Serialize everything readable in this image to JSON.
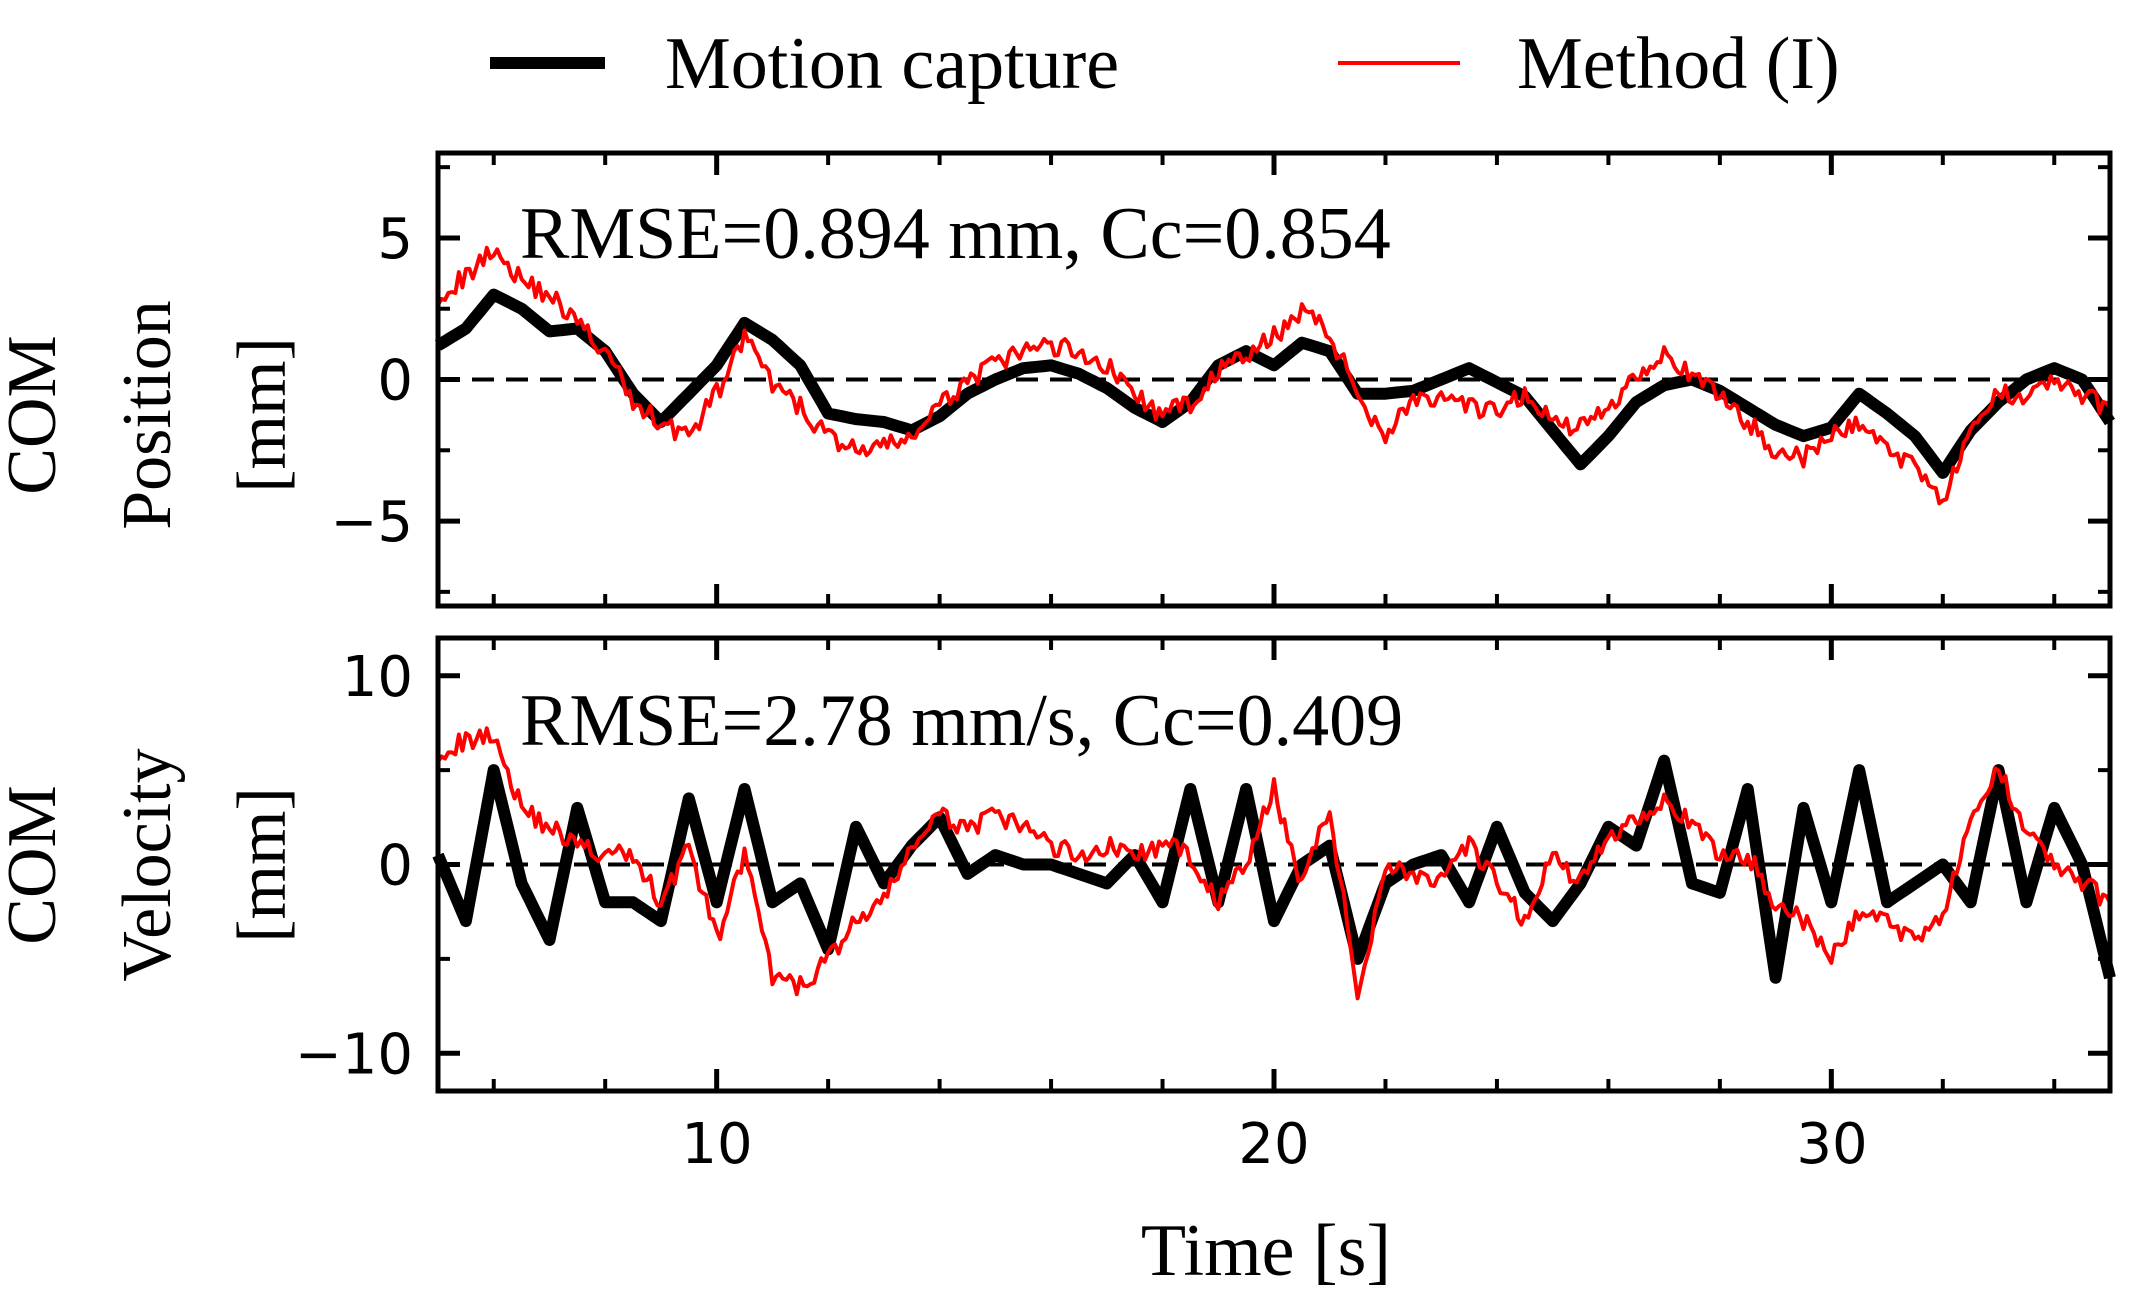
{
  "legend": {
    "placement": "top-center",
    "entries": [
      {
        "label": "Motion capture",
        "color": "#000000"
      },
      {
        "label": "Method (I)",
        "color": "#ff0000"
      }
    ]
  },
  "xaxis": {
    "label": "Time [s]",
    "ticks": [
      "10",
      "20",
      "30"
    ]
  },
  "chart_data": [
    {
      "type": "line",
      "title": "",
      "ylabel_lines": [
        "COM",
        "Position",
        "[mm]"
      ],
      "annotation": "RMSE=0.894 mm, Cc=0.854",
      "xlim": [
        5,
        35
      ],
      "ylim": [
        -8,
        8
      ],
      "yticks": [
        {
          "value": 5,
          "label": "5"
        },
        {
          "value": 0,
          "label": "0"
        },
        {
          "value": -5,
          "label": "−5"
        }
      ],
      "reference_line": 0,
      "grid": false,
      "series": [
        {
          "name": "Motion capture",
          "color": "#000000",
          "x": [
            5,
            5.5,
            6,
            6.5,
            7,
            7.5,
            8,
            8.5,
            9,
            9.5,
            10,
            10.5,
            11,
            11.5,
            12,
            12.5,
            13,
            13.5,
            14,
            14.5,
            15,
            15.5,
            16,
            16.5,
            17,
            17.5,
            18,
            18.5,
            19,
            19.5,
            20,
            20.5,
            21,
            21.5,
            22,
            22.5,
            23,
            23.5,
            24,
            24.5,
            25,
            25.5,
            26,
            26.5,
            27,
            27.5,
            28,
            28.5,
            29,
            29.5,
            30,
            30.5,
            31,
            31.5,
            32,
            32.5,
            33,
            33.5,
            34,
            34.5,
            35
          ],
          "y": [
            1.2,
            1.8,
            3.0,
            2.5,
            1.7,
            1.8,
            1.0,
            -0.5,
            -1.5,
            -0.5,
            0.5,
            2.0,
            1.4,
            0.5,
            -1.2,
            -1.4,
            -1.5,
            -1.8,
            -1.3,
            -0.5,
            0.0,
            0.4,
            0.5,
            0.2,
            -0.3,
            -1.0,
            -1.5,
            -0.8,
            0.5,
            1.0,
            0.5,
            1.3,
            1.0,
            -0.5,
            -0.5,
            -0.4,
            0.0,
            0.4,
            -0.1,
            -0.6,
            -1.8,
            -3.0,
            -2.0,
            -0.8,
            -0.2,
            0.0,
            -0.4,
            -1.0,
            -1.6,
            -2.0,
            -1.7,
            -0.5,
            -1.2,
            -2.0,
            -3.3,
            -1.8,
            -0.8,
            0.0,
            0.4,
            0.0,
            -1.5
          ]
        },
        {
          "name": "Method (I)",
          "color": "#ff0000",
          "x": [
            5,
            5.5,
            6,
            6.5,
            7,
            7.5,
            8,
            8.5,
            9,
            9.5,
            10,
            10.5,
            11,
            11.5,
            12,
            12.5,
            13,
            13.5,
            14,
            14.5,
            15,
            15.5,
            16,
            16.5,
            17,
            17.5,
            18,
            18.5,
            19,
            19.5,
            20,
            20.5,
            21,
            21.5,
            22,
            22.5,
            23,
            23.5,
            24,
            24.5,
            25,
            25.5,
            26,
            26.5,
            27,
            27.5,
            28,
            28.5,
            29,
            29.5,
            30,
            30.5,
            31,
            31.5,
            32,
            32.5,
            33,
            33.5,
            34,
            34.5,
            35
          ],
          "y": [
            3.0,
            3.6,
            4.7,
            3.5,
            3.0,
            2.0,
            1.0,
            -0.8,
            -1.5,
            -2.0,
            -0.5,
            1.5,
            -0.2,
            -1.0,
            -2.0,
            -2.5,
            -2.4,
            -2.0,
            -1.0,
            0.0,
            0.5,
            1.0,
            1.2,
            1.0,
            0.5,
            -0.5,
            -1.3,
            -0.8,
            0.3,
            0.8,
            1.5,
            2.5,
            1.6,
            -0.5,
            -2.0,
            -0.6,
            -0.8,
            -1.0,
            -1.2,
            -0.5,
            -1.5,
            -1.7,
            -1.0,
            0.2,
            1.0,
            0.0,
            -0.5,
            -1.5,
            -2.5,
            -2.8,
            -2.0,
            -1.5,
            -2.5,
            -3.0,
            -4.2,
            -2.0,
            -0.5,
            -0.5,
            0.0,
            -0.6,
            -1.0
          ]
        }
      ]
    },
    {
      "type": "line",
      "title": "",
      "ylabel_lines": [
        "COM",
        "Velocity",
        "[mm]"
      ],
      "annotation": "RMSE=2.78 mm/s, Cc=0.409",
      "xlim": [
        5,
        35
      ],
      "ylim": [
        -12,
        12
      ],
      "yticks": [
        {
          "value": 10,
          "label": "10"
        },
        {
          "value": 0,
          "label": "0"
        },
        {
          "value": -10,
          "label": "−10"
        }
      ],
      "reference_line": 0,
      "grid": false,
      "series": [
        {
          "name": "Motion capture",
          "color": "#000000",
          "x": [
            5,
            5.5,
            6,
            6.5,
            7,
            7.5,
            8,
            8.5,
            9,
            9.5,
            10,
            10.5,
            11,
            11.5,
            12,
            12.5,
            13,
            13.5,
            14,
            14.5,
            15,
            15.5,
            16,
            16.5,
            17,
            17.5,
            18,
            18.5,
            19,
            19.5,
            20,
            20.5,
            21,
            21.5,
            22,
            22.5,
            23,
            23.5,
            24,
            24.5,
            25,
            25.5,
            26,
            26.5,
            27,
            27.5,
            28,
            28.5,
            29,
            29.5,
            30,
            30.5,
            31,
            31.5,
            32,
            32.5,
            33,
            33.5,
            34,
            34.5,
            35
          ],
          "y": [
            0.5,
            -3.0,
            5.0,
            -1.0,
            -4.0,
            3.0,
            -2.0,
            -2.0,
            -3.0,
            3.5,
            -2.0,
            4.0,
            -2.0,
            -1.0,
            -4.5,
            2.0,
            -1.0,
            1.0,
            2.5,
            -0.5,
            0.5,
            0.0,
            0.0,
            -0.5,
            -1.0,
            0.5,
            -2.0,
            4.0,
            -2.0,
            4.0,
            -3.0,
            0.0,
            1.0,
            -5.0,
            -1.0,
            0.0,
            0.5,
            -2.0,
            2.0,
            -1.5,
            -3.0,
            -1.0,
            2.0,
            1.0,
            5.5,
            -1.0,
            -1.5,
            4.0,
            -6.0,
            3.0,
            -2.0,
            5.0,
            -2.0,
            -1.0,
            0.0,
            -2.0,
            5.0,
            -2.0,
            3.0,
            0.0,
            -6.0
          ]
        },
        {
          "name": "Method (I)",
          "color": "#ff0000",
          "x": [
            5,
            5.5,
            6,
            6.5,
            7,
            7.5,
            8,
            8.5,
            9,
            9.5,
            10,
            10.5,
            11,
            11.5,
            12,
            12.5,
            13,
            13.5,
            14,
            14.5,
            15,
            15.5,
            16,
            16.5,
            17,
            17.5,
            18,
            18.5,
            19,
            19.5,
            20,
            20.5,
            21,
            21.5,
            22,
            22.5,
            23,
            23.5,
            24,
            24.5,
            25,
            25.5,
            26,
            26.5,
            27,
            27.5,
            28,
            28.5,
            29,
            29.5,
            30,
            30.5,
            31,
            31.5,
            32,
            32.5,
            33,
            33.5,
            34,
            34.5,
            35
          ],
          "y": [
            6.0,
            6.5,
            7.0,
            3.0,
            2.0,
            1.0,
            0.5,
            0.5,
            -2.0,
            1.0,
            -4.0,
            0.5,
            -6.0,
            -6.5,
            -5.0,
            -3.0,
            -2.0,
            1.0,
            2.5,
            2.0,
            2.5,
            2.0,
            1.0,
            0.5,
            1.0,
            0.5,
            1.0,
            0.5,
            -2.0,
            0.0,
            4.0,
            -1.0,
            3.0,
            -7.0,
            0.0,
            -0.5,
            -1.0,
            1.0,
            -1.0,
            -3.0,
            0.5,
            -1.0,
            1.5,
            2.5,
            3.5,
            2.0,
            0.5,
            0.5,
            -2.0,
            -3.0,
            -5.0,
            -2.5,
            -3.0,
            -4.0,
            -2.5,
            2.0,
            5.0,
            2.0,
            0.0,
            -1.0,
            -2.0
          ]
        }
      ]
    }
  ]
}
